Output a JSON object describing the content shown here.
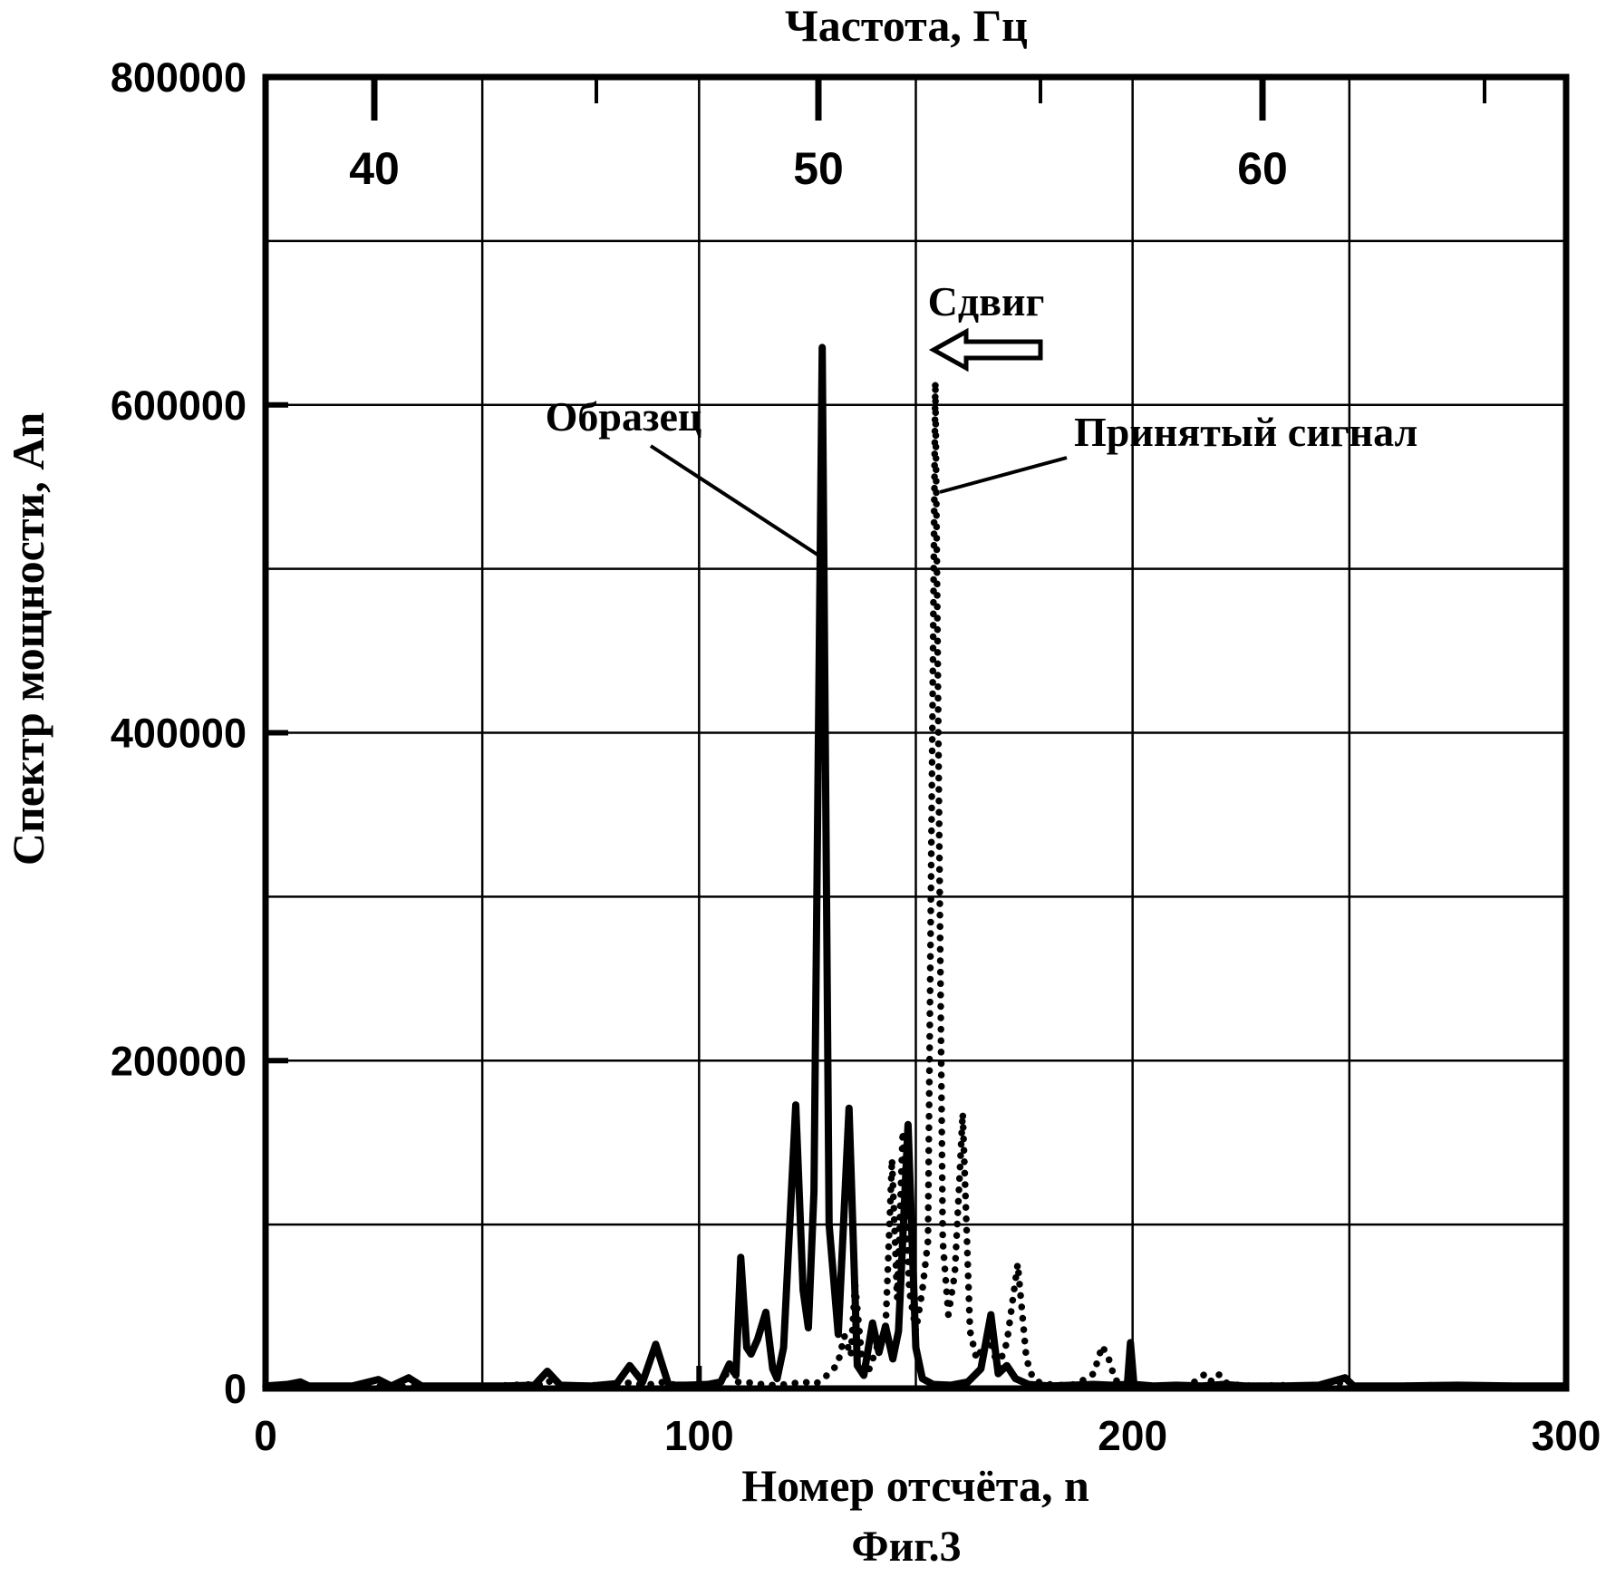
{
  "figure": {
    "background": "#ffffff",
    "ink_color": "#000000"
  },
  "chart_data": {
    "type": "line",
    "caption": "Фиг.3",
    "top_axis": {
      "title": "Частота, Гц",
      "unit": "Гц",
      "major_ticks": [
        40,
        50,
        60
      ],
      "minor_ticks": [
        45,
        55,
        65
      ]
    },
    "x_axis": {
      "title": "Номер отсчёта, n",
      "min": 0,
      "max": 300,
      "major_ticks": [
        0,
        100,
        200,
        300
      ],
      "gridlines": [
        50,
        100,
        150,
        200,
        250
      ]
    },
    "y_axis": {
      "title": "Спектр мощности, An",
      "min": 0,
      "max": 800000,
      "labeled_ticks": [
        0,
        200000,
        400000,
        600000,
        800000
      ],
      "gridline_step": 100000
    },
    "grid": true,
    "annotations": {
      "shift_label": "Сдвиг",
      "sample_peak": {
        "n": 128.4,
        "value": 635000,
        "frequency_hz": 50
      },
      "received_peak": {
        "n": 154.5,
        "value": 614000
      }
    },
    "series": [
      {
        "name": "Образец",
        "style": "solid",
        "points": [
          [
            0,
            1500
          ],
          [
            5,
            2500
          ],
          [
            8,
            4000
          ],
          [
            10,
            1500
          ],
          [
            20,
            1500
          ],
          [
            26,
            5500
          ],
          [
            29,
            1500
          ],
          [
            33,
            6500
          ],
          [
            36,
            1500
          ],
          [
            45,
            1500
          ],
          [
            55,
            1500
          ],
          [
            62,
            2000
          ],
          [
            65,
            10500
          ],
          [
            68,
            2000
          ],
          [
            75,
            1500
          ],
          [
            81,
            3000
          ],
          [
            84,
            14000
          ],
          [
            87,
            4000
          ],
          [
            90,
            27000
          ],
          [
            93,
            2000
          ],
          [
            97,
            2000
          ],
          [
            102,
            2500
          ],
          [
            105,
            4000
          ],
          [
            107,
            15000
          ],
          [
            108.5,
            8000
          ],
          [
            109.6,
            80000
          ],
          [
            111,
            25000
          ],
          [
            112,
            21000
          ],
          [
            113.5,
            30000
          ],
          [
            115.4,
            46500
          ],
          [
            117,
            12000
          ],
          [
            118,
            6000
          ],
          [
            119.5,
            25000
          ],
          [
            122.3,
            173000
          ],
          [
            124,
            60000
          ],
          [
            125.2,
            37000
          ],
          [
            126.5,
            120000
          ],
          [
            128.4,
            635000
          ],
          [
            130,
            100000
          ],
          [
            132.1,
            33000
          ],
          [
            134.6,
            171000
          ],
          [
            136.5,
            14000
          ],
          [
            138,
            8000
          ],
          [
            140,
            40000
          ],
          [
            141.5,
            22000
          ],
          [
            143,
            38000
          ],
          [
            144.7,
            18000
          ],
          [
            146,
            35000
          ],
          [
            148.2,
            161000
          ],
          [
            150,
            25000
          ],
          [
            151.5,
            6000
          ],
          [
            154,
            2500
          ],
          [
            158,
            2000
          ],
          [
            162,
            4000
          ],
          [
            165,
            12000
          ],
          [
            167.3,
            45000
          ],
          [
            169,
            9000
          ],
          [
            171,
            14000
          ],
          [
            173,
            6000
          ],
          [
            176,
            2500
          ],
          [
            181,
            1500
          ],
          [
            186,
            2000
          ],
          [
            191,
            2500
          ],
          [
            195,
            2000
          ],
          [
            198.8,
            2500
          ],
          [
            199.5,
            28000
          ],
          [
            200.3,
            2500
          ],
          [
            205,
            1500
          ],
          [
            210,
            2000
          ],
          [
            216,
            1500
          ],
          [
            221,
            2500
          ],
          [
            226,
            1500
          ],
          [
            235,
            1500
          ],
          [
            243,
            2000
          ],
          [
            249,
            6500
          ],
          [
            251,
            1500
          ],
          [
            262,
            1500
          ],
          [
            275,
            2000
          ],
          [
            288,
            1500
          ],
          [
            300,
            1500
          ]
        ]
      },
      {
        "name": "Принятый сигнал",
        "style": "dotted",
        "points": [
          [
            0,
            1200
          ],
          [
            10,
            1200
          ],
          [
            20,
            1500
          ],
          [
            30,
            1200
          ],
          [
            40,
            1500
          ],
          [
            50,
            1200
          ],
          [
            60,
            2500
          ],
          [
            63,
            2000
          ],
          [
            65,
            5000
          ],
          [
            67,
            2000
          ],
          [
            72,
            1500
          ],
          [
            80,
            2500
          ],
          [
            84,
            3500
          ],
          [
            88,
            2000
          ],
          [
            91,
            4000
          ],
          [
            95,
            2000
          ],
          [
            100,
            2000
          ],
          [
            104,
            2500
          ],
          [
            107.5,
            12000
          ],
          [
            109,
            4000
          ],
          [
            112,
            3500
          ],
          [
            116,
            2000
          ],
          [
            120,
            2500
          ],
          [
            124,
            4000
          ],
          [
            127,
            3000
          ],
          [
            130,
            9000
          ],
          [
            132,
            15000
          ],
          [
            133.5,
            32000
          ],
          [
            135,
            20000
          ],
          [
            136,
            63000
          ],
          [
            137.5,
            20000
          ],
          [
            139,
            10000
          ],
          [
            141,
            25000
          ],
          [
            143,
            35000
          ],
          [
            144.5,
            140000
          ],
          [
            145.7,
            55000
          ],
          [
            147,
            157000
          ],
          [
            148.5,
            60000
          ],
          [
            150,
            35000
          ],
          [
            151.5,
            60000
          ],
          [
            152.8,
            90000
          ],
          [
            154.5,
            614000
          ],
          [
            156.2,
            90000
          ],
          [
            157.5,
            45000
          ],
          [
            159,
            70000
          ],
          [
            160.8,
            168000
          ],
          [
            162.5,
            35000
          ],
          [
            164,
            18000
          ],
          [
            165.5,
            25000
          ],
          [
            167,
            30000
          ],
          [
            169,
            13000
          ],
          [
            171,
            28000
          ],
          [
            173.5,
            76000
          ],
          [
            175.5,
            18000
          ],
          [
            177,
            6000
          ],
          [
            179,
            3000
          ],
          [
            183,
            2000
          ],
          [
            187,
            2500
          ],
          [
            191,
            9000
          ],
          [
            193,
            26000
          ],
          [
            194.5,
            18000
          ],
          [
            196,
            5000
          ],
          [
            199,
            2500
          ],
          [
            203,
            1500
          ],
          [
            208,
            2000
          ],
          [
            213,
            1500
          ],
          [
            216.8,
            9000
          ],
          [
            218.3,
            4000
          ],
          [
            220,
            8500
          ],
          [
            222,
            2500
          ],
          [
            228,
            1500
          ],
          [
            235,
            2000
          ],
          [
            242,
            1500
          ],
          [
            249.5,
            4000
          ],
          [
            252,
            1500
          ],
          [
            260,
            1500
          ],
          [
            270,
            2000
          ],
          [
            280,
            1500
          ],
          [
            290,
            1500
          ],
          [
            300,
            1500
          ]
        ]
      }
    ]
  }
}
